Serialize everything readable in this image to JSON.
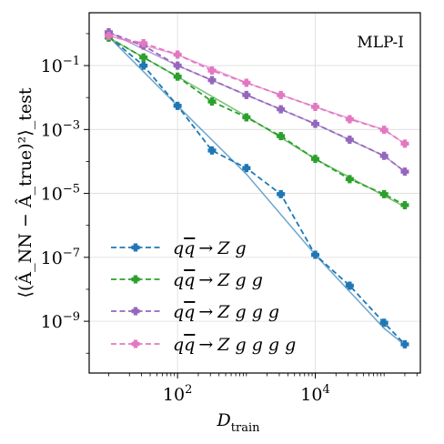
{
  "chart_data": {
    "type": "line",
    "annotation": "MLP-I",
    "xlabel_main": "D",
    "xlabel_sub": "train",
    "ylabel_text": "⟨(Â_NN − Â_true)²⟩_test",
    "x_scale": "log",
    "y_scale": "log",
    "xlim": [
      5.2,
      336000
    ],
    "ylim": [
      2.4e-11,
      4.5
    ],
    "x_ticks": [
      {
        "value": 100,
        "base": "10",
        "exp": "2"
      },
      {
        "value": 10000,
        "base": "10",
        "exp": "4"
      }
    ],
    "y_ticks": [
      {
        "value": 0.1,
        "base": "10",
        "exp": "−1"
      },
      {
        "value": 0.001,
        "base": "10",
        "exp": "−3"
      },
      {
        "value": 1e-05,
        "base": "10",
        "exp": "−5"
      },
      {
        "value": 1e-07,
        "base": "10",
        "exp": "−7"
      },
      {
        "value": 1e-09,
        "base": "10",
        "exp": "−9"
      }
    ],
    "grid": true,
    "legend_position": "bottom-left",
    "x": [
      10,
      32,
      100,
      316,
      1000,
      3162,
      10000,
      31623,
      100000,
      200000
    ],
    "series": [
      {
        "name": "qq̄ → Z g",
        "color": "#1f77b4",
        "values": [
          0.8,
          0.1,
          0.0055,
          0.00022,
          6.2e-05,
          9.5e-06,
          1.2e-07,
          1.3e-08,
          9e-10,
          1.9e-10
        ],
        "fit": [
          [
            10,
            0.8
          ],
          [
            100,
            0.0055
          ],
          [
            1000,
            4e-05
          ],
          [
            10000,
            1.2e-07
          ],
          [
            100000,
            6e-10
          ],
          [
            200000,
            1.8e-10
          ]
        ]
      },
      {
        "name": "qq̄ → Z g g",
        "color": "#2ca02c",
        "values": [
          0.75,
          0.18,
          0.045,
          0.0075,
          0.0024,
          0.00062,
          0.00012,
          2.8e-05,
          9.5e-06,
          4.3e-06
        ],
        "fit": [
          [
            10,
            0.75
          ],
          [
            100,
            0.045
          ],
          [
            1000,
            0.0026
          ],
          [
            10000,
            0.00012
          ],
          [
            100000,
            8.5e-06
          ],
          [
            200000,
            3.8e-06
          ]
        ]
      },
      {
        "name": "qq̄ → Z g g g",
        "color": "#9467bd",
        "values": [
          1.1,
          0.42,
          0.1,
          0.035,
          0.012,
          0.0043,
          0.0015,
          0.00048,
          0.00015,
          4.8e-05
        ],
        "fit": [
          [
            10,
            1.1
          ],
          [
            100,
            0.1
          ],
          [
            1000,
            0.012
          ],
          [
            10000,
            0.0015
          ],
          [
            100000,
            0.00015
          ],
          [
            200000,
            4.8e-05
          ]
        ]
      },
      {
        "name": "qq̄ → Z g g g g",
        "color": "#e377c2",
        "values": [
          0.85,
          0.5,
          0.22,
          0.07,
          0.029,
          0.012,
          0.0051,
          0.0021,
          0.00098,
          0.00036
        ],
        "fit": [
          [
            10,
            0.85
          ],
          [
            100,
            0.22
          ],
          [
            1000,
            0.029
          ],
          [
            10000,
            0.0051
          ],
          [
            100000,
            0.00098
          ],
          [
            200000,
            0.00036
          ]
        ]
      }
    ],
    "legend": [
      {
        "prefix": "q",
        "qbar": "q",
        "arrow": "→",
        "rest": "Z g"
      },
      {
        "prefix": "q",
        "qbar": "q",
        "arrow": "→",
        "rest": "Z g g"
      },
      {
        "prefix": "q",
        "qbar": "q",
        "arrow": "→",
        "rest": "Z g g g"
      },
      {
        "prefix": "q",
        "qbar": "q",
        "arrow": "→",
        "rest": "Z g g g g"
      }
    ]
  }
}
